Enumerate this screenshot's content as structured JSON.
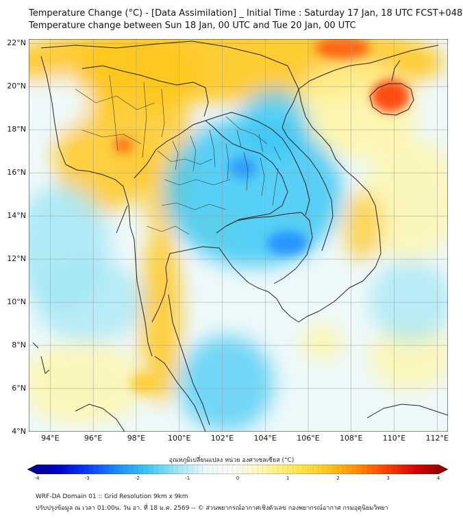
{
  "header": {
    "title_line1": "Temperature Change (°C) - [Data Assimilation] _ Initial Time : Saturday 17 Jan, 18 UTC FCST+048",
    "title_line2": "Temperature change between Sun 18 Jan, 00 UTC and Tue 20 Jan, 00 UTC"
  },
  "axes": {
    "lat_labels": [
      "22°N",
      "20°N",
      "18°N",
      "16°N",
      "14°N",
      "12°N",
      "10°N",
      "8°N",
      "6°N",
      "4°N"
    ],
    "lon_labels": [
      "94°E",
      "96°E",
      "98°E",
      "100°E",
      "102°E",
      "104°E",
      "106°E",
      "108°E",
      "110°E",
      "112°E"
    ]
  },
  "colorbar": {
    "title": "อุณหภูมิเปลี่ยนแปลง หน่วย องศาเซลเซียส (°C)",
    "ticks": [
      "-4",
      "-3",
      "-2",
      "-1",
      "0",
      "1",
      "2",
      "3",
      "4"
    ],
    "min": -4,
    "max": 4,
    "colors": [
      "#00007f",
      "#0000c8",
      "#0a3cff",
      "#1e8cff",
      "#3cc8f5",
      "#a0e6f5",
      "#eef9fa",
      "#fafaf0",
      "#fff5a0",
      "#ffe650",
      "#ffc81e",
      "#ff8c00",
      "#ff3c00",
      "#d20000",
      "#7f0000"
    ]
  },
  "footer": {
    "line1": "WRF-DA Domain 01 :: Grid Resolution 9km x 9km",
    "line2": "ปรับปรุงข้อมูล ณ เวลา 01:00น. วัน อา. ที่ 18 ม.ค. 2569 -- © ส่วนพยากรณ์อากาศเชิงตัวเลข กองพยากรณ์อากาศ กรมอุตุนิยมวิทยา"
  },
  "map_colors": {
    "warm_strong": "#ff3c00",
    "warm": "#ffc81e",
    "warm_light": "#fff5a0",
    "neutral": "#eef9fa",
    "cool_light": "#a0e6f5",
    "cool": "#3cc8f5",
    "cool_strong": "#1e8cff",
    "border": "#222222",
    "grid": "#9a9a9a"
  }
}
